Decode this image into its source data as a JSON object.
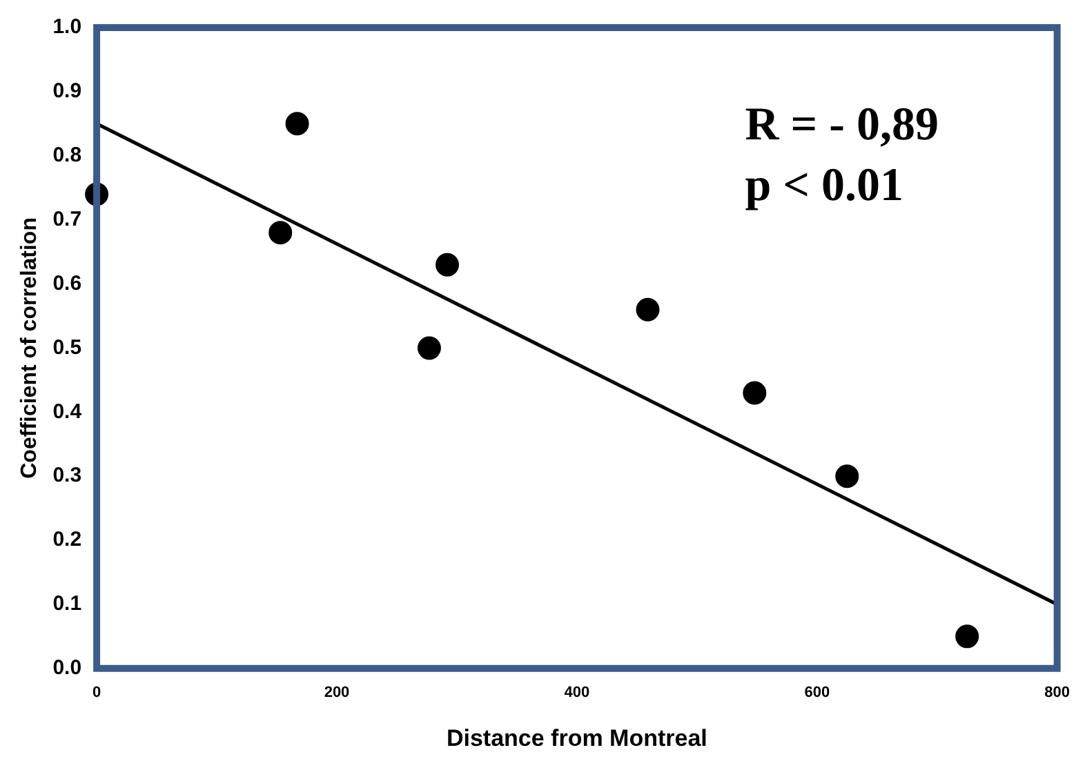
{
  "chart_data": {
    "type": "scatter",
    "xlabel": "Distance from Montreal",
    "ylabel": "Coefficient of correlation",
    "annotations": [
      "R = - 0,89",
      "p < 0.01"
    ],
    "series": [
      {
        "color": "#000000",
        "x": [
          0,
          153,
          167,
          277,
          292,
          459,
          548,
          625,
          725
        ],
        "values": [
          0.74,
          0.68,
          0.85,
          0.5,
          0.63,
          0.56,
          0.43,
          0.3,
          0.05
        ],
        "marker": "circle"
      },
      {
        "type": "line",
        "color": "#000000",
        "x": [
          0,
          800
        ],
        "values": [
          0.85,
          0.1
        ],
        "marker": "none"
      }
    ],
    "xlim": [
      0,
      800
    ],
    "xticks": [
      0,
      200,
      400,
      600,
      800
    ],
    "ylim": [
      0,
      1
    ],
    "yticks": [
      {
        "value": 0,
        "label": "0.0"
      },
      {
        "value": 0.1,
        "label": "0.1"
      },
      {
        "value": 0.2,
        "label": "0.2"
      },
      {
        "value": 0.3,
        "label": "0.3"
      },
      {
        "value": 0.4,
        "label": "0.4"
      },
      {
        "value": 0.5,
        "label": "0.5"
      },
      {
        "value": 0.6,
        "label": "0.6"
      },
      {
        "value": 0.7,
        "label": "0.7"
      },
      {
        "value": 0.8,
        "label": "0.8"
      },
      {
        "value": 0.9,
        "label": "0.9"
      },
      {
        "value": 1,
        "label": "1.0"
      }
    ],
    "grid": false,
    "legend": false
  }
}
